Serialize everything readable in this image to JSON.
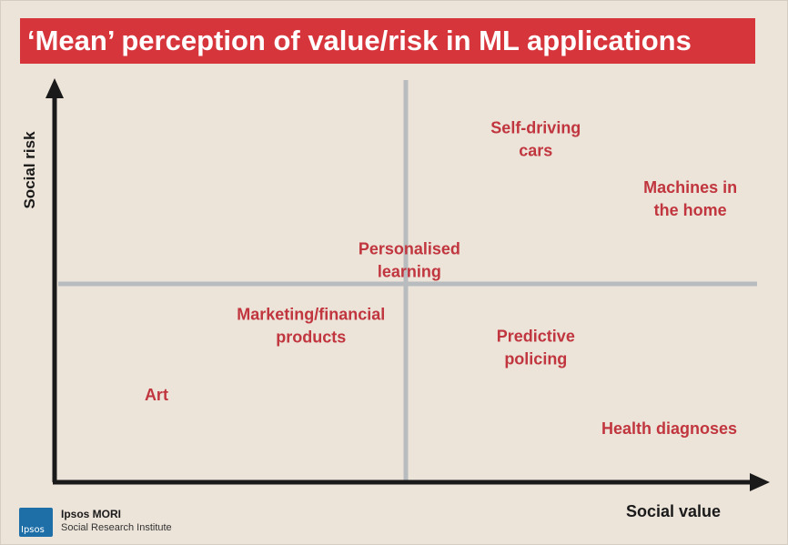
{
  "colors": {
    "accent": "#d6353c",
    "label": "#c1363e",
    "axis": "#1a1a1a",
    "quadrant_line": "#b9bcbf",
    "background": "#ece3d9",
    "logo": "#1e6fa8"
  },
  "chart_data": {
    "type": "scatter",
    "title": "‘Mean’ perception of value/risk in ML applications",
    "xlabel": "Social value",
    "ylabel": "Social risk",
    "xlim": [
      0,
      100
    ],
    "ylim": [
      0,
      100
    ],
    "quadrant_divider": {
      "x": 50,
      "y": 50
    },
    "grid": false,
    "points": [
      {
        "name": "Self-driving cars",
        "lines": [
          "Self-driving",
          "cars"
        ],
        "x": 68.5,
        "y": 86.5
      },
      {
        "name": "Machines in the home",
        "lines": [
          "Machines in",
          "the home"
        ],
        "x": 90.5,
        "y": 71.5
      },
      {
        "name": "Personalised learning",
        "lines": [
          "Personalised",
          "learning"
        ],
        "x": 50.5,
        "y": 56.0
      },
      {
        "name": "Marketing/financial products",
        "lines": [
          "Marketing/financial",
          "products"
        ],
        "x": 36.5,
        "y": 39.5
      },
      {
        "name": "Predictive policing",
        "lines": [
          "Predictive",
          "policing"
        ],
        "x": 68.5,
        "y": 34.0
      },
      {
        "name": "Art",
        "lines": [
          "Art"
        ],
        "x": 14.5,
        "y": 22.0
      },
      {
        "name": "Health diagnoses",
        "lines": [
          "Health diagnoses"
        ],
        "x": 87.5,
        "y": 13.5
      }
    ]
  },
  "footer": {
    "logo_text": "Ipsos",
    "brand": "Ipsos MORI",
    "subtitle": "Social Research Institute"
  }
}
